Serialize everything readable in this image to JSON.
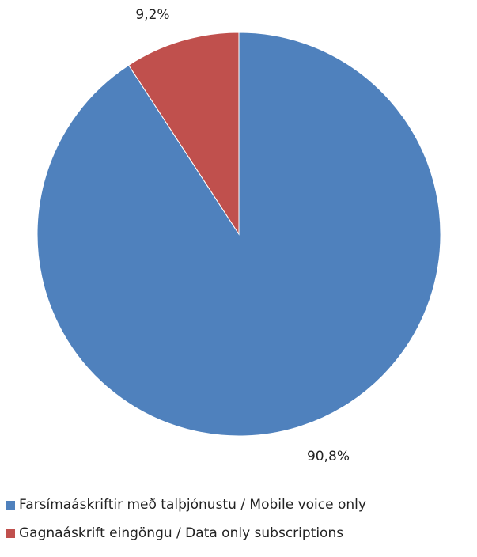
{
  "chart_data": {
    "type": "pie",
    "title": "",
    "slices": [
      {
        "label": "Farsímaáskriftir með talþjónustu / Mobile voice only",
        "value": 90.8,
        "display": "90,8%",
        "color": "#4F81BD"
      },
      {
        "label": "Gagnaáskrift eingöngu / Data only subscriptions",
        "value": 9.2,
        "display": "9,2%",
        "color": "#C0504D"
      }
    ],
    "start_angle": "12 o'clock",
    "direction": "counterclockwise",
    "legend_position": "bottom-left"
  }
}
